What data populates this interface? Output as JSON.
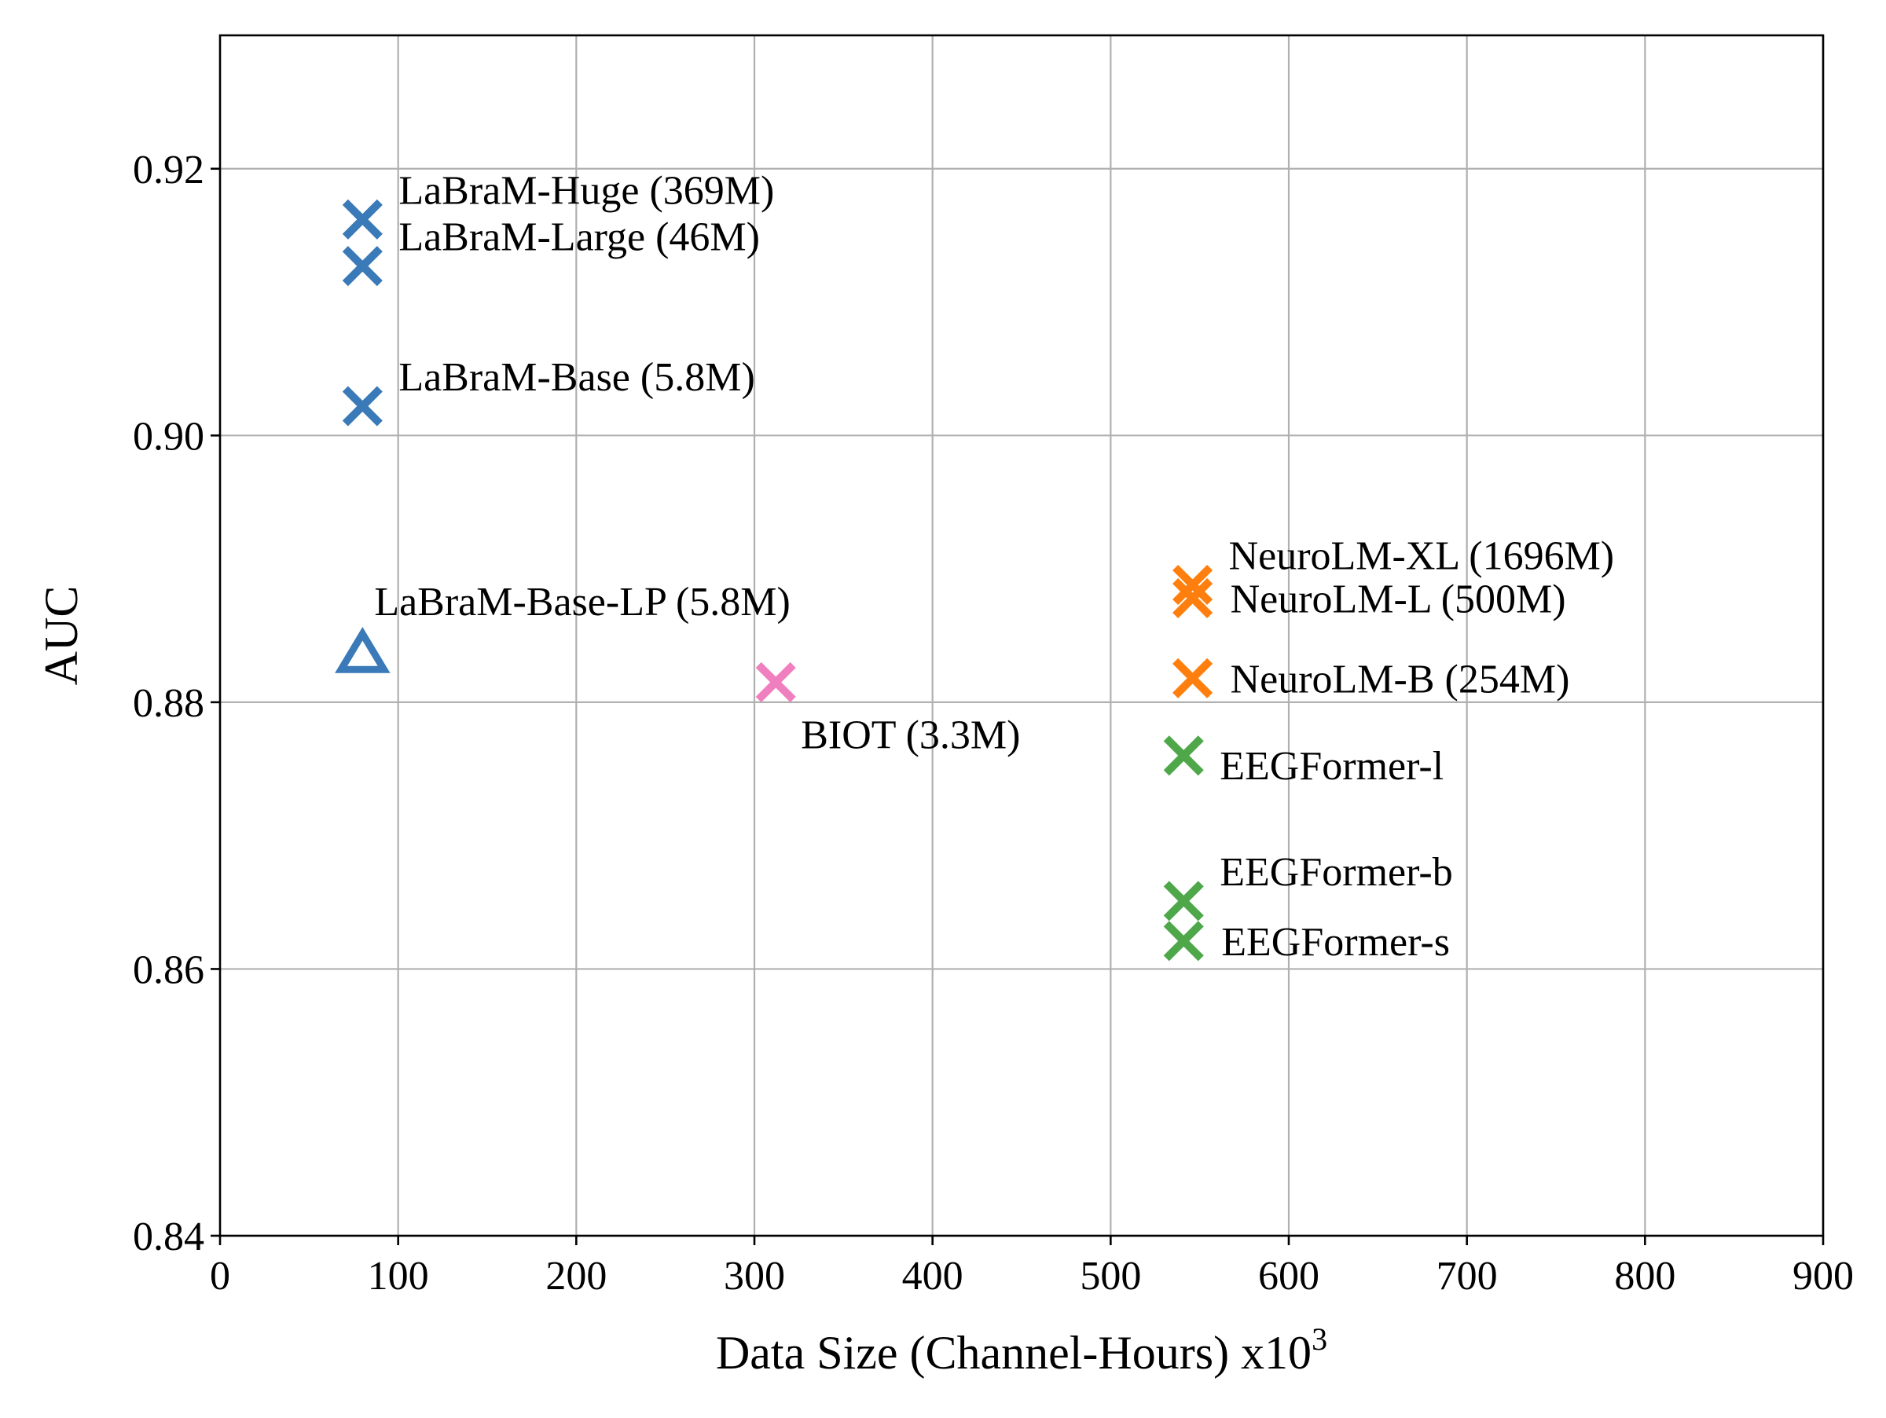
{
  "chart_data": {
    "type": "scatter",
    "title": "",
    "xlabel": "Data Size (Channel-Hours) x10",
    "xlabel_superscript": "3",
    "ylabel": "AUC",
    "xlim": [
      0,
      900
    ],
    "ylim": [
      0.84,
      0.93
    ],
    "xticks": [
      0,
      100,
      200,
      300,
      400,
      500,
      600,
      700,
      800,
      900
    ],
    "xtick_labels": [
      "0",
      "100",
      "200",
      "300",
      "400",
      "500",
      "600",
      "700",
      "800",
      "900"
    ],
    "yticks": [
      0.84,
      0.86,
      0.88,
      0.9,
      0.92
    ],
    "ytick_labels": [
      "0.84",
      "0.86",
      "0.88",
      "0.90",
      "0.92"
    ],
    "grid": true,
    "points": [
      {
        "label": "LaBraM-Huge (369M)",
        "x": 80,
        "y": 0.9162,
        "marker": "x",
        "color": "#3a7ab8",
        "label_pos": "upper-right"
      },
      {
        "label": "LaBraM-Large (46M)",
        "x": 80,
        "y": 0.9127,
        "marker": "x",
        "color": "#3a7ab8",
        "label_pos": "upper-right"
      },
      {
        "label": "LaBraM-Base (5.8M)",
        "x": 80,
        "y": 0.9022,
        "marker": "x",
        "color": "#3a7ab8",
        "label_pos": "upper-right"
      },
      {
        "label": "LaBraM-Base-LP (5.8M)",
        "x": 80,
        "y": 0.8836,
        "marker": "triangle",
        "color": "#3a7ab8",
        "label_pos": "above-right"
      },
      {
        "label": "BIOT (3.3M)",
        "x": 312,
        "y": 0.8815,
        "marker": "x",
        "color": "#f07fc0",
        "label_pos": "below-right"
      },
      {
        "label": "NeuroLM-XL (1696M)",
        "x": 546,
        "y": 0.8888,
        "marker": "x",
        "color": "#ff7f0e",
        "label_pos": "upper-right"
      },
      {
        "label": "NeuroLM-L (500M)",
        "x": 546,
        "y": 0.8878,
        "marker": "x",
        "color": "#ff7f0e",
        "label_pos": "right"
      },
      {
        "label": "NeuroLM-B (254M)",
        "x": 546,
        "y": 0.8818,
        "marker": "x",
        "color": "#ff7f0e",
        "label_pos": "right"
      },
      {
        "label": "EEGFormer-l",
        "x": 541,
        "y": 0.876,
        "marker": "x",
        "color": "#4ea84a",
        "label_pos": "lower-right"
      },
      {
        "label": "EEGFormer-b",
        "x": 541,
        "y": 0.8651,
        "marker": "x",
        "color": "#4ea84a",
        "label_pos": "upper-right"
      },
      {
        "label": "EEGFormer-s",
        "x": 541,
        "y": 0.8621,
        "marker": "x",
        "color": "#4ea84a",
        "label_pos": "right"
      }
    ]
  }
}
